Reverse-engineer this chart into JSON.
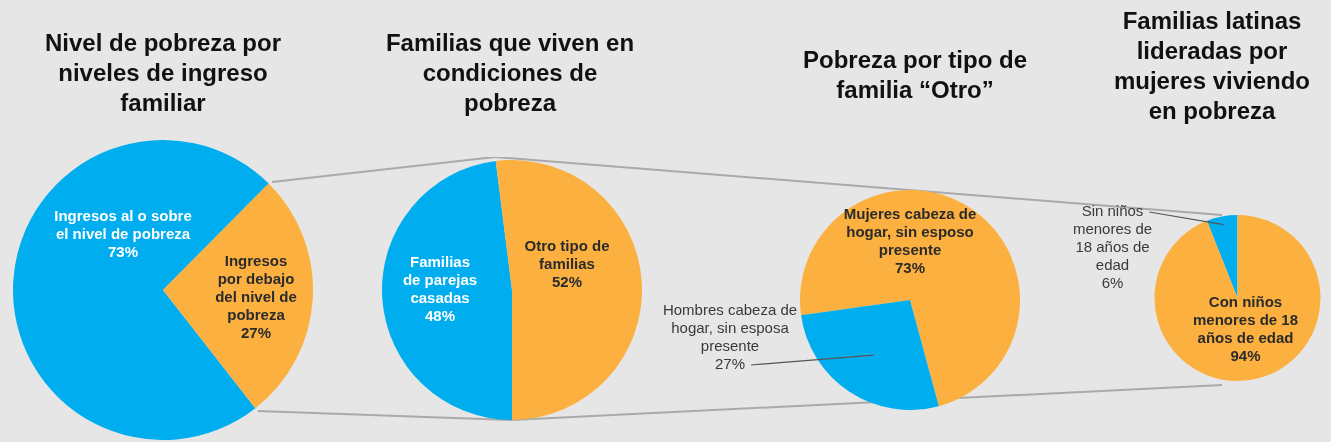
{
  "chart_data": [
    {
      "type": "pie",
      "title": "Nivel de pobreza por niveles de ingreso familiar",
      "categories": [
        "Ingresos al o sobre el nivel de pobreza",
        "Ingresos por debajo del nivel de pobreza"
      ],
      "values": [
        73,
        27
      ],
      "colors": [
        "#00aeef",
        "#fbb040"
      ],
      "value_labels": [
        "73%",
        "27%"
      ]
    },
    {
      "type": "pie",
      "title": "Familias que viven en condiciones de pobreza",
      "categories": [
        "Familias de parejas casadas",
        "Otro tipo de familias"
      ],
      "values": [
        48,
        52
      ],
      "colors": [
        "#00aeef",
        "#fbb040"
      ],
      "value_labels": [
        "48%",
        "52%"
      ]
    },
    {
      "type": "pie",
      "title": "Pobreza por tipo de familia “Otro”",
      "categories": [
        "Mujeres cabeza de hogar, sin esposo presente",
        "Hombres cabeza de hogar, sin esposa presente"
      ],
      "values": [
        73,
        27
      ],
      "colors": [
        "#fbb040",
        "#00aeef"
      ],
      "value_labels": [
        "73%",
        "27%"
      ]
    },
    {
      "type": "pie",
      "title": "Familias latinas lideradas por mujeres viviendo en pobreza",
      "categories": [
        "Sin niños menores de 18 años de edad",
        "Con niños menores de 18 años de edad"
      ],
      "values": [
        6,
        94
      ],
      "colors": [
        "#00aeef",
        "#fbb040"
      ],
      "value_labels": [
        "6%",
        "94%"
      ]
    }
  ]
}
